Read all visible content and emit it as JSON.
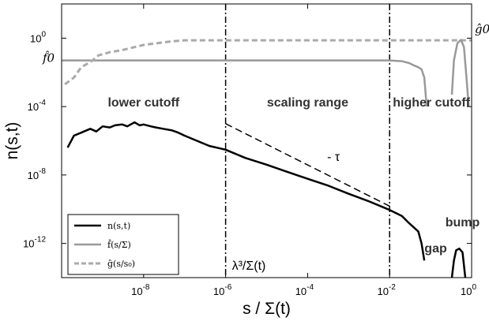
{
  "chart_data": {
    "type": "line",
    "xlabel": "s / Σ(t)",
    "ylabel": "n(s,t)",
    "x_scale": "log",
    "y_scale": "log",
    "xlim": [
      1e-10,
      1
    ],
    "ylim": [
      1e-14,
      100.0
    ],
    "grid": false,
    "legend_position": "bottom-left",
    "x_ticks": [
      {
        "value": 1e-08,
        "base": "10",
        "exp": "-8"
      },
      {
        "value": 1e-06,
        "base": "10",
        "exp": "-6"
      },
      {
        "value": 0.0001,
        "base": "10",
        "exp": "-4"
      },
      {
        "value": 0.01,
        "base": "10",
        "exp": "-2"
      },
      {
        "value": 1,
        "base": "10",
        "exp": "0"
      }
    ],
    "y_ticks": [
      {
        "value": 1,
        "base": "10",
        "exp": "0"
      },
      {
        "value": 0.0001,
        "base": "10",
        "exp": "-4"
      },
      {
        "value": 1e-08,
        "base": "10",
        "exp": "-8"
      },
      {
        "value": 1e-12,
        "base": "10",
        "exp": "-12"
      }
    ],
    "series": [
      {
        "name": "n(s,t)",
        "color": "#000000",
        "style": "solid",
        "points": [
          [
            1.4e-10,
            4e-07
          ],
          [
            2e-10,
            2e-06
          ],
          [
            3e-10,
            3e-06
          ],
          [
            5e-10,
            5e-06
          ],
          [
            7e-10,
            3.5e-06
          ],
          [
            1e-09,
            7e-06
          ],
          [
            1.5e-09,
            6e-06
          ],
          [
            2e-09,
            8e-06
          ],
          [
            3e-09,
            9e-06
          ],
          [
            4e-09,
            7e-06
          ],
          [
            6e-09,
            1.2e-05
          ],
          [
            8e-09,
            8e-06
          ],
          [
            1e-08,
            9e-06
          ],
          [
            1.5e-08,
            7e-06
          ],
          [
            2e-08,
            6e-06
          ],
          [
            3e-08,
            5e-06
          ],
          [
            5e-08,
            4e-06
          ],
          [
            7e-08,
            3e-06
          ],
          [
            1e-07,
            2e-06
          ],
          [
            2e-07,
            1e-06
          ],
          [
            4e-07,
            5e-07
          ],
          [
            1e-06,
            3e-07
          ],
          [
            3e-06,
            1e-07
          ],
          [
            1e-05,
            4e-08
          ],
          [
            3e-05,
            1.6e-08
          ],
          [
            0.0001,
            6e-09
          ],
          [
            0.0003,
            2.5e-09
          ],
          [
            0.001,
            8e-10
          ],
          [
            0.003,
            3e-10
          ],
          [
            0.01,
            9e-11
          ],
          [
            0.02,
            4e-11
          ],
          [
            0.03,
            1.5e-11
          ],
          [
            0.05,
            5e-12
          ],
          [
            0.06,
            1e-12
          ],
          [
            0.07,
            1e-13
          ]
        ]
      },
      {
        "name": "f̂(s/Σ)",
        "color": "#999999",
        "style": "solid",
        "points": [
          [
            1e-10,
            0.05
          ],
          [
            1e-08,
            0.05
          ],
          [
            1e-06,
            0.05
          ],
          [
            0.0001,
            0.05
          ],
          [
            0.01,
            0.05
          ],
          [
            0.02,
            0.045
          ],
          [
            0.03,
            0.035
          ],
          [
            0.04,
            0.025
          ],
          [
            0.05,
            0.02
          ],
          [
            0.06,
            0.015
          ],
          [
            0.07,
            0.005
          ],
          [
            0.08,
            0.0001
          ]
        ]
      },
      {
        "name": "ĝ(s/s₀)",
        "color": "#aaaaaa",
        "style": "dashed",
        "points": [
          [
            1.2e-10,
            0.002
          ],
          [
            2e-10,
            0.005
          ],
          [
            3e-10,
            0.02
          ],
          [
            5e-10,
            0.04
          ],
          [
            8e-10,
            0.1
          ],
          [
            1.5e-09,
            0.15
          ],
          [
            3e-09,
            0.2
          ],
          [
            6e-09,
            0.3
          ],
          [
            1e-08,
            0.4
          ],
          [
            2e-08,
            0.5
          ],
          [
            5e-08,
            0.65
          ],
          [
            1e-07,
            0.75
          ],
          [
            1e-06,
            0.75
          ],
          [
            0.0001,
            0.75
          ],
          [
            0.01,
            0.75
          ],
          [
            0.1,
            0.75
          ],
          [
            1,
            0.75
          ]
        ]
      },
      {
        "name": "bump (black)",
        "color": "#000000",
        "style": "solid",
        "legend": false,
        "points": [
          [
            0.33,
            1e-14
          ],
          [
            0.37,
            1e-13
          ],
          [
            0.42,
            4e-13
          ],
          [
            0.5,
            5e-13
          ],
          [
            0.6,
            3e-13
          ],
          [
            0.7,
            1e-14
          ]
        ]
      },
      {
        "name": "bump (grey)",
        "color": "#999999",
        "style": "solid",
        "legend": false,
        "points": [
          [
            0.33,
            0.0005
          ],
          [
            0.37,
            0.05
          ],
          [
            0.45,
            0.5
          ],
          [
            0.55,
            0.8
          ],
          [
            0.65,
            0.3
          ],
          [
            0.75,
            0.005
          ],
          [
            0.85,
            0.0001
          ]
        ]
      }
    ],
    "reference_lines": [
      {
        "orientation": "vertical",
        "x": 1e-06,
        "style": "dashdot",
        "color": "#000000"
      },
      {
        "orientation": "vertical",
        "x": 0.01,
        "style": "dashdot",
        "color": "#000000"
      }
    ],
    "slope_guide": {
      "from": [
        1e-06,
        1e-05
      ],
      "to": [
        0.01,
        1.5e-10
      ],
      "style": "dashed",
      "color": "#000000",
      "label": "- τ",
      "label_at": [
        0.0003,
        1e-07
      ]
    },
    "annotations": [
      {
        "text": "lower cutoff",
        "x": 1e-08,
        "y": 0.0001
      },
      {
        "text": "scaling range",
        "x": 0.0001,
        "y": 0.0001
      },
      {
        "text": "higher cutoff",
        "x": 0.3,
        "y": 0.0001
      },
      {
        "text": "λ³/Σ(t)",
        "x": 1.5e-05,
        "y": 1e-13
      },
      {
        "text": "bump",
        "x": 0.6,
        "y": 1e-11
      },
      {
        "text": "gap",
        "x": 0.25,
        "y": 3e-13
      },
      {
        "text": "f̂0",
        "x": 4e-11,
        "y": 0.04
      },
      {
        "text": "ĝ0",
        "x": 1.5,
        "y": 2
      }
    ]
  }
}
